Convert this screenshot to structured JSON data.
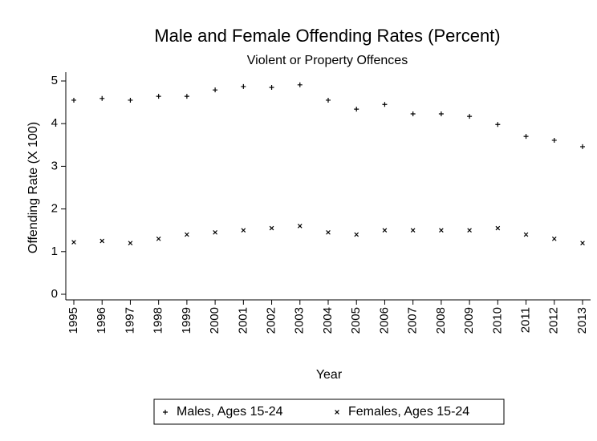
{
  "chart_data": {
    "type": "scatter",
    "title": "Male and Female Offending Rates (Percent)",
    "subtitle": "Violent or Property Offences",
    "x_label": "Year",
    "y_label": "Offending Rate (X 100)",
    "categories": [
      "1995",
      "1996",
      "1997",
      "1998",
      "1999",
      "2000",
      "2001",
      "2002",
      "2003",
      "2004",
      "2005",
      "2006",
      "2007",
      "2008",
      "2009",
      "2010",
      "2011",
      "2012",
      "2013"
    ],
    "series": [
      {
        "name": "Males, Ages 15-24",
        "color": "#000000",
        "marker": "plus",
        "values": [
          4.55,
          4.59,
          4.55,
          4.64,
          4.64,
          4.79,
          4.87,
          4.85,
          4.91,
          4.55,
          4.34,
          4.45,
          4.23,
          4.23,
          4.17,
          3.98,
          3.7,
          3.61,
          3.46
        ]
      },
      {
        "name": "Females, Ages 15-24",
        "color": "#000000",
        "marker": "x",
        "values": [
          1.22,
          1.25,
          1.2,
          1.3,
          1.4,
          1.45,
          1.5,
          1.55,
          1.6,
          1.45,
          1.4,
          1.5,
          1.5,
          1.5,
          1.5,
          1.55,
          1.4,
          1.3,
          1.2
        ]
      }
    ],
    "ylim": [
      0,
      5
    ],
    "yticks": [
      0,
      1,
      2,
      3,
      4,
      5
    ],
    "grid": false,
    "legend": "bottom"
  }
}
